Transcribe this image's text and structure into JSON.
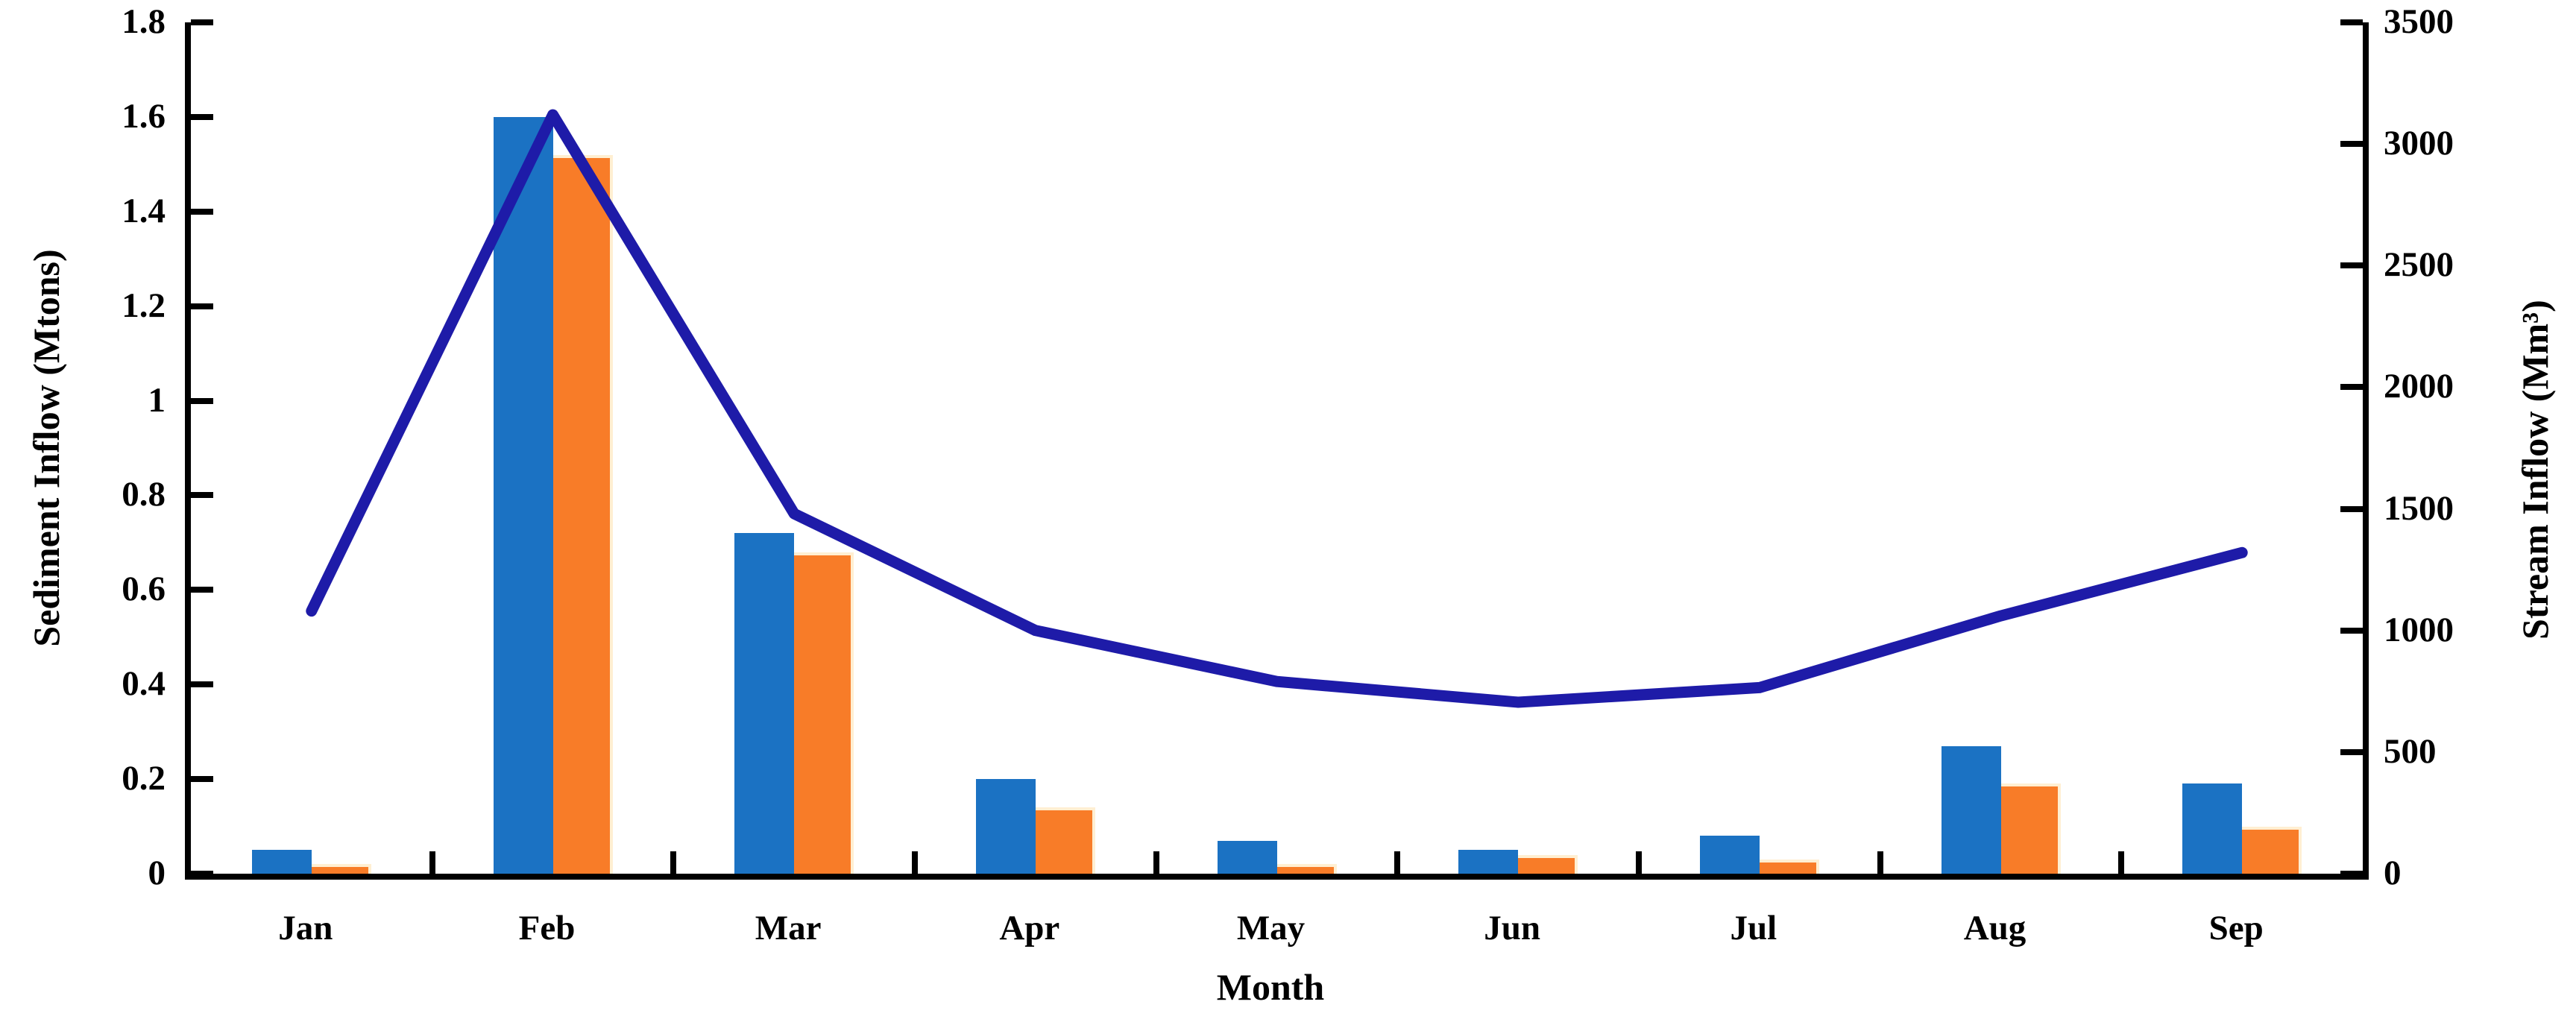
{
  "chart_data": {
    "type": "bar",
    "subtype": "grouped-bars-with-line-combo",
    "categories": [
      "Jan",
      "Feb",
      "Mar",
      "Apr",
      "May",
      "Jun",
      "Jul",
      "Aug",
      "Sep"
    ],
    "bar_series": [
      {
        "axis": "left",
        "color": "#1B72C3",
        "values": [
          0.05,
          1.6,
          0.72,
          0.2,
          0.07,
          0.05,
          0.08,
          0.27,
          0.19
        ]
      },
      {
        "axis": "left",
        "color": "#F87C28",
        "border_color": "#FFEFD2",
        "values": [
          0.02,
          1.52,
          0.68,
          0.14,
          0.02,
          0.04,
          0.03,
          0.19,
          0.1
        ]
      }
    ],
    "line_series": {
      "axis": "right",
      "color": "#1E1BA8",
      "values": [
        1080,
        3120,
        1480,
        1000,
        790,
        705,
        765,
        1060,
        1320
      ]
    },
    "left_axis": {
      "label": "Sediment Inflow (Mtons)",
      "min": 0,
      "max": 1.8,
      "tick_labels": [
        "1.8",
        "1.6",
        "1.4",
        "1.2",
        "1",
        "0.8",
        "0.6",
        "0.4",
        "0.2",
        "0"
      ]
    },
    "right_axis": {
      "label": "Stream Inflow (Mm³)",
      "min": 0,
      "max": 3500,
      "tick_labels": [
        "3500",
        "3000",
        "2500",
        "2000",
        "1500",
        "1000",
        "500",
        "0"
      ]
    },
    "x_axis": {
      "label": "Month"
    },
    "grid": false,
    "legend": false
  }
}
